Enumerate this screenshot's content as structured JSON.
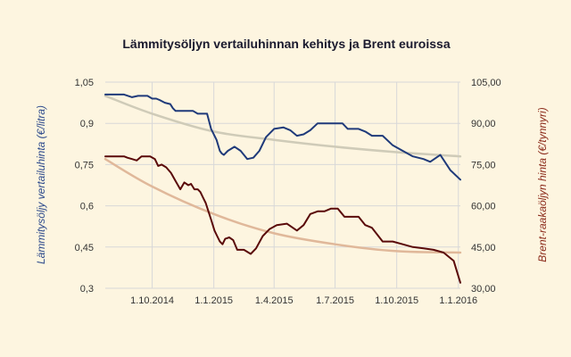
{
  "chart_data": {
    "type": "line",
    "title": "Lämmitysöljyn vertailuhinnan kehitys ja Brent euroissa",
    "ylabel_left": "Lämmitysöljy vertailuhinta (€/litra)",
    "ylabel_right": "Brent-raakaöljyn hinta (€/tynnyri)",
    "x_ticks": [
      "1.10.2014",
      "1.1.2015",
      "1.4.2015",
      "1.7.2015",
      "1.10.2015",
      "1.1.2016"
    ],
    "y_left_ticks": [
      "1,05",
      "0,9",
      "0,75",
      "0,6",
      "0,45",
      "0,3"
    ],
    "y_right_ticks": [
      "105,00",
      "90,00",
      "75,00",
      "60,00",
      "45,00",
      "30,00"
    ],
    "ylim_left": [
      0.3,
      1.05
    ],
    "ylim_right": [
      30,
      105
    ],
    "xlim": [
      "2014-07-23",
      "2016-01-04"
    ],
    "colors": {
      "heating_oil": "#1f3a7a",
      "heating_oil_trend": "#cfcbb8",
      "brent": "#5a0a0a",
      "brent_trend": "#e0b89a"
    },
    "series": [
      {
        "axis": "left",
        "x": [
          "2014-07-23",
          "2014-08-10",
          "2014-08-20",
          "2014-09-01",
          "2014-09-10",
          "2014-09-17",
          "2014-09-24",
          "2014-10-01",
          "2014-10-07",
          "2014-10-12",
          "2014-10-20",
          "2014-10-28",
          "2014-11-01",
          "2014-11-05",
          "2014-11-08",
          "2014-11-12",
          "2014-11-15",
          "2014-11-20",
          "2014-12-01",
          "2014-12-08",
          "2014-12-15",
          "2014-12-22",
          "2014-12-28",
          "2015-01-05",
          "2015-01-10",
          "2015-01-13",
          "2015-01-16",
          "2015-01-22",
          "2015-02-01",
          "2015-02-10",
          "2015-02-20",
          "2015-03-01",
          "2015-03-10",
          "2015-03-20",
          "2015-04-01",
          "2015-04-15",
          "2015-04-25",
          "2015-05-05",
          "2015-05-15",
          "2015-05-25",
          "2015-06-05",
          "2015-06-15",
          "2015-06-25",
          "2015-07-05",
          "2015-07-12",
          "2015-07-20",
          "2015-07-28",
          "2015-08-05",
          "2015-08-15",
          "2015-08-25",
          "2015-09-10",
          "2015-09-25",
          "2015-10-10",
          "2015-10-25",
          "2015-11-10",
          "2015-11-20",
          "2015-12-05",
          "2015-12-20",
          "2016-01-04"
        ],
        "values": [
          1.005,
          1.005,
          1.005,
          0.995,
          1.0,
          1.0,
          1.0,
          0.99,
          0.99,
          0.985,
          0.975,
          0.97,
          0.955,
          0.945,
          0.945,
          0.945,
          0.945,
          0.945,
          0.945,
          0.935,
          0.935,
          0.935,
          0.88,
          0.84,
          0.8,
          0.79,
          0.785,
          0.8,
          0.815,
          0.8,
          0.77,
          0.775,
          0.8,
          0.85,
          0.88,
          0.885,
          0.875,
          0.855,
          0.86,
          0.875,
          0.9,
          0.9,
          0.9,
          0.9,
          0.9,
          0.88,
          0.88,
          0.88,
          0.87,
          0.855,
          0.855,
          0.82,
          0.8,
          0.78,
          0.77,
          0.76,
          0.785,
          0.73,
          0.695
        ]
      },
      {
        "axis": "left",
        "x": [
          "2014-07-23",
          "2014-10-01",
          "2015-01-01",
          "2015-04-01",
          "2015-07-01",
          "2015-10-01",
          "2016-01-04"
        ],
        "values": [
          1.0,
          0.935,
          0.87,
          0.84,
          0.815,
          0.795,
          0.78
        ]
      },
      {
        "axis": "right",
        "x": [
          "2014-07-23",
          "2014-08-10",
          "2014-08-20",
          "2014-08-25",
          "2014-09-01",
          "2014-09-08",
          "2014-09-15",
          "2014-09-22",
          "2014-09-28",
          "2014-10-05",
          "2014-10-10",
          "2014-10-15",
          "2014-10-22",
          "2014-10-29",
          "2014-11-05",
          "2014-11-12",
          "2014-11-18",
          "2014-11-24",
          "2014-11-28",
          "2014-12-03",
          "2014-12-08",
          "2014-12-12",
          "2014-12-16",
          "2014-12-20",
          "2014-12-24",
          "2014-12-28",
          "2015-01-02",
          "2015-01-06",
          "2015-01-10",
          "2015-01-14",
          "2015-01-18",
          "2015-01-24",
          "2015-01-30",
          "2015-02-05",
          "2015-02-15",
          "2015-02-25",
          "2015-03-05",
          "2015-03-15",
          "2015-03-25",
          "2015-04-05",
          "2015-04-20",
          "2015-05-05",
          "2015-05-15",
          "2015-05-25",
          "2015-06-05",
          "2015-06-15",
          "2015-06-25",
          "2015-07-05",
          "2015-07-15",
          "2015-07-25",
          "2015-08-05",
          "2015-08-15",
          "2015-08-25",
          "2015-09-10",
          "2015-09-25",
          "2015-10-10",
          "2015-10-25",
          "2015-11-10",
          "2015-11-25",
          "2015-12-10",
          "2015-12-25",
          "2016-01-04"
        ],
        "values": [
          78,
          78,
          78,
          77.5,
          77,
          76.5,
          78,
          78,
          78,
          77,
          74.5,
          75,
          74,
          72,
          69,
          66,
          68.5,
          67.5,
          68,
          66,
          66,
          65,
          63,
          61,
          58,
          55,
          51,
          49,
          47,
          46,
          48,
          48.5,
          47.5,
          44,
          44,
          42.5,
          44.5,
          49,
          51.5,
          53,
          53.5,
          51,
          53,
          57,
          58,
          58,
          59,
          59,
          56,
          56,
          56,
          53,
          52,
          47,
          47,
          46,
          45,
          44.5,
          44,
          43,
          40,
          32
        ]
      },
      {
        "axis": "right",
        "x": [
          "2014-07-23",
          "2014-10-01",
          "2015-01-01",
          "2015-04-01",
          "2015-07-01",
          "2015-10-01",
          "2016-01-04"
        ],
        "values": [
          77,
          67,
          57,
          50,
          46,
          43.5,
          43
        ]
      }
    ]
  }
}
